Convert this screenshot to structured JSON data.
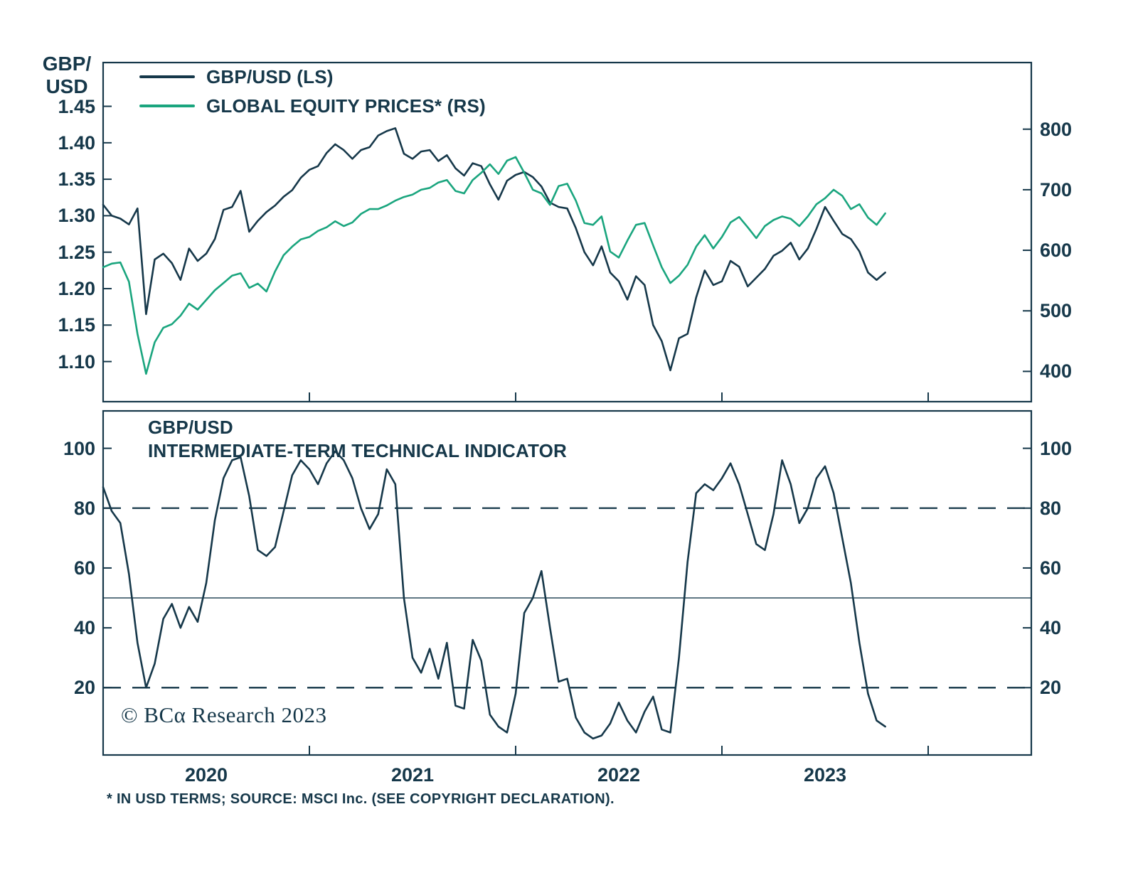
{
  "theme": {
    "dark": "#16384a",
    "green": "#1aa57e",
    "background": "#ffffff"
  },
  "labels": {
    "left_axis_title_line1": "GBP/",
    "left_axis_title_line2": "USD",
    "indicator_title_line1": "GBP/USD",
    "indicator_title_line2": "INTERMEDIATE-TERM TECHNICAL INDICATOR",
    "copyright": "© BCα Research 2023",
    "footnote": "* IN USD TERMS; SOURCE: MSCI Inc. (SEE COPYRIGHT DECLARATION)."
  },
  "chart_data": [
    {
      "type": "line",
      "title": "GBP/USD vs Global Equity Prices",
      "x_axis": {
        "start": 2020.0,
        "step_years": 0.0416667,
        "range": [
          2020.0,
          2024.5
        ],
        "tick_years": [
          2021,
          2022,
          2023,
          2024
        ],
        "year_labels": [
          "2020",
          "2021",
          "2022",
          "2023"
        ]
      },
      "left_axis": {
        "title": "GBP/USD",
        "ticks": [
          "1.45",
          "1.40",
          "1.35",
          "1.30",
          "1.25",
          "1.20",
          "1.15",
          "1.10"
        ],
        "range": [
          1.045,
          1.51
        ]
      },
      "right_axis": {
        "ticks": [
          "800",
          "700",
          "600",
          "500",
          "400"
        ],
        "range": [
          350,
          910
        ]
      },
      "series": [
        {
          "name": "GBP/USD (LS)",
          "axis": "left",
          "color": "#16384a",
          "values": [
            1.315,
            1.3,
            1.296,
            1.288,
            1.31,
            1.165,
            1.24,
            1.248,
            1.235,
            1.212,
            1.255,
            1.238,
            1.248,
            1.268,
            1.308,
            1.312,
            1.334,
            1.278,
            1.293,
            1.305,
            1.314,
            1.326,
            1.335,
            1.352,
            1.363,
            1.368,
            1.386,
            1.398,
            1.39,
            1.378,
            1.39,
            1.394,
            1.41,
            1.416,
            1.42,
            1.385,
            1.378,
            1.388,
            1.39,
            1.375,
            1.383,
            1.365,
            1.355,
            1.372,
            1.368,
            1.343,
            1.322,
            1.348,
            1.356,
            1.36,
            1.353,
            1.34,
            1.318,
            1.312,
            1.31,
            1.283,
            1.25,
            1.232,
            1.258,
            1.222,
            1.21,
            1.185,
            1.217,
            1.205,
            1.15,
            1.128,
            1.088,
            1.132,
            1.138,
            1.188,
            1.225,
            1.205,
            1.21,
            1.238,
            1.23,
            1.203,
            1.215,
            1.227,
            1.245,
            1.252,
            1.263,
            1.24,
            1.255,
            1.282,
            1.312,
            1.293,
            1.275,
            1.268,
            1.251,
            1.222,
            1.212,
            1.222
          ]
        },
        {
          "name": "GLOBAL EQUITY PRICES* (RS)",
          "axis": "right",
          "color": "#1aa57e",
          "values": [
            572,
            578,
            580,
            548,
            462,
            396,
            448,
            472,
            478,
            492,
            512,
            502,
            518,
            534,
            546,
            558,
            562,
            538,
            545,
            532,
            565,
            592,
            606,
            618,
            622,
            632,
            638,
            648,
            640,
            646,
            660,
            668,
            668,
            674,
            682,
            688,
            692,
            700,
            703,
            712,
            716,
            698,
            694,
            716,
            728,
            742,
            726,
            748,
            754,
            728,
            700,
            694,
            675,
            706,
            710,
            682,
            645,
            642,
            656,
            598,
            588,
            616,
            642,
            645,
            608,
            572,
            546,
            558,
            576,
            606,
            625,
            603,
            622,
            646,
            655,
            638,
            620,
            640,
            650,
            656,
            652,
            640,
            656,
            676,
            686,
            700,
            690,
            668,
            676,
            654,
            642,
            661
          ]
        }
      ]
    },
    {
      "type": "line",
      "title": "GBP/USD INTERMEDIATE-TERM TECHNICAL INDICATOR",
      "x_axis": {
        "start": 2020.0,
        "step_years": 0.0416667,
        "range": [
          2020.0,
          2024.5
        ],
        "tick_years": [
          2021,
          2022,
          2023,
          2024
        ]
      },
      "left_axis": {
        "ticks": [
          "100",
          "80",
          "60",
          "40",
          "20"
        ],
        "range": [
          -2.5,
          112.5
        ]
      },
      "right_axis": {
        "ticks": [
          "100",
          "80",
          "60",
          "40",
          "20"
        ],
        "range": [
          -2.5,
          112.5
        ]
      },
      "ref_lines": [
        {
          "value": 80,
          "style": "dashed"
        },
        {
          "value": 50,
          "style": "solid"
        },
        {
          "value": 20,
          "style": "dashed"
        }
      ],
      "series": [
        {
          "name": "INTERMEDIATE-TERM TECHNICAL INDICATOR",
          "axis": "left",
          "color": "#16384a",
          "values": [
            87,
            79,
            75,
            58,
            35,
            20,
            28,
            43,
            48,
            40,
            47,
            42,
            55,
            76,
            90,
            96,
            97,
            84,
            66,
            64,
            67,
            79,
            91,
            96,
            93,
            88,
            95,
            99,
            96,
            90,
            80,
            73,
            78,
            93,
            88,
            50,
            30,
            25,
            33,
            23,
            35,
            14,
            13,
            36,
            29,
            11,
            7,
            5,
            18,
            45,
            50,
            59,
            40,
            22,
            23,
            10,
            5,
            3,
            4,
            8,
            15,
            9,
            5,
            12,
            17,
            6,
            5,
            30,
            62,
            85,
            88,
            86,
            90,
            95,
            88,
            78,
            68,
            66,
            78,
            96,
            88,
            75,
            80,
            90,
            94,
            85,
            70,
            55,
            35,
            18,
            9,
            7
          ]
        }
      ]
    }
  ]
}
